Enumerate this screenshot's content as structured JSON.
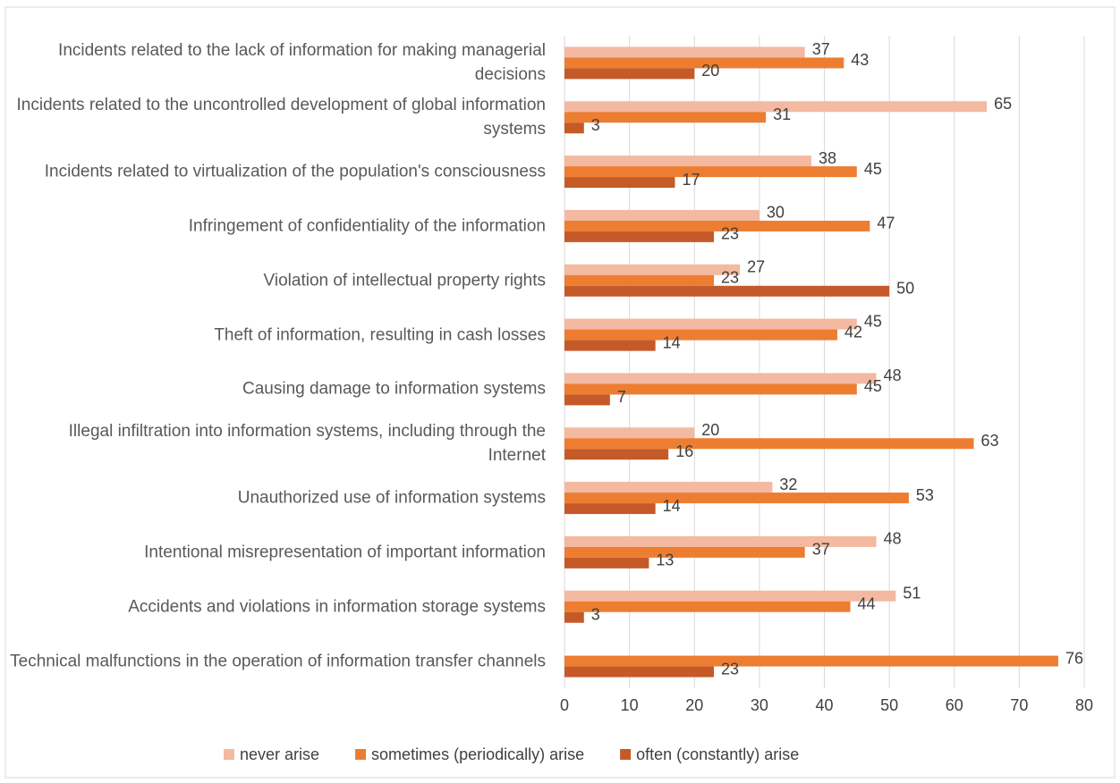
{
  "chart_data": {
    "type": "bar",
    "orientation": "horizontal",
    "categories": [
      "Incidents related to the lack of information for making managerial decisions",
      "Incidents related to the uncontrolled development of global information systems",
      "Incidents related to virtualization of the population's consciousness",
      "Infringement of confidentiality of the information",
      "Violation of intellectual property rights",
      "Theft of information, resulting in cash losses",
      "Causing damage to information systems",
      "Illegal infiltration into information systems, including through the Internet",
      "Unauthorized use of information systems",
      "Intentional misrepresentation of important information",
      "Accidents and violations in information storage systems",
      "Technical malfunctions in the operation of information transfer channels"
    ],
    "series": [
      {
        "name": "never arise",
        "color": "#f4b9a1",
        "values": [
          37,
          65,
          38,
          30,
          27,
          45,
          48,
          20,
          32,
          48,
          51,
          null
        ]
      },
      {
        "name": "sometimes (periodically) arise",
        "color": "#ed7d31",
        "values": [
          43,
          31,
          45,
          47,
          23,
          42,
          45,
          63,
          53,
          37,
          44,
          76
        ]
      },
      {
        "name": "often (constantly) arise",
        "color": "#c55a28",
        "values": [
          20,
          3,
          17,
          23,
          50,
          14,
          7,
          16,
          14,
          13,
          3,
          23
        ]
      }
    ],
    "xlim": [
      0,
      80
    ],
    "xticks": [
      0,
      10,
      20,
      30,
      40,
      50,
      60,
      70,
      80
    ],
    "grid": true,
    "legend": "bottom"
  }
}
